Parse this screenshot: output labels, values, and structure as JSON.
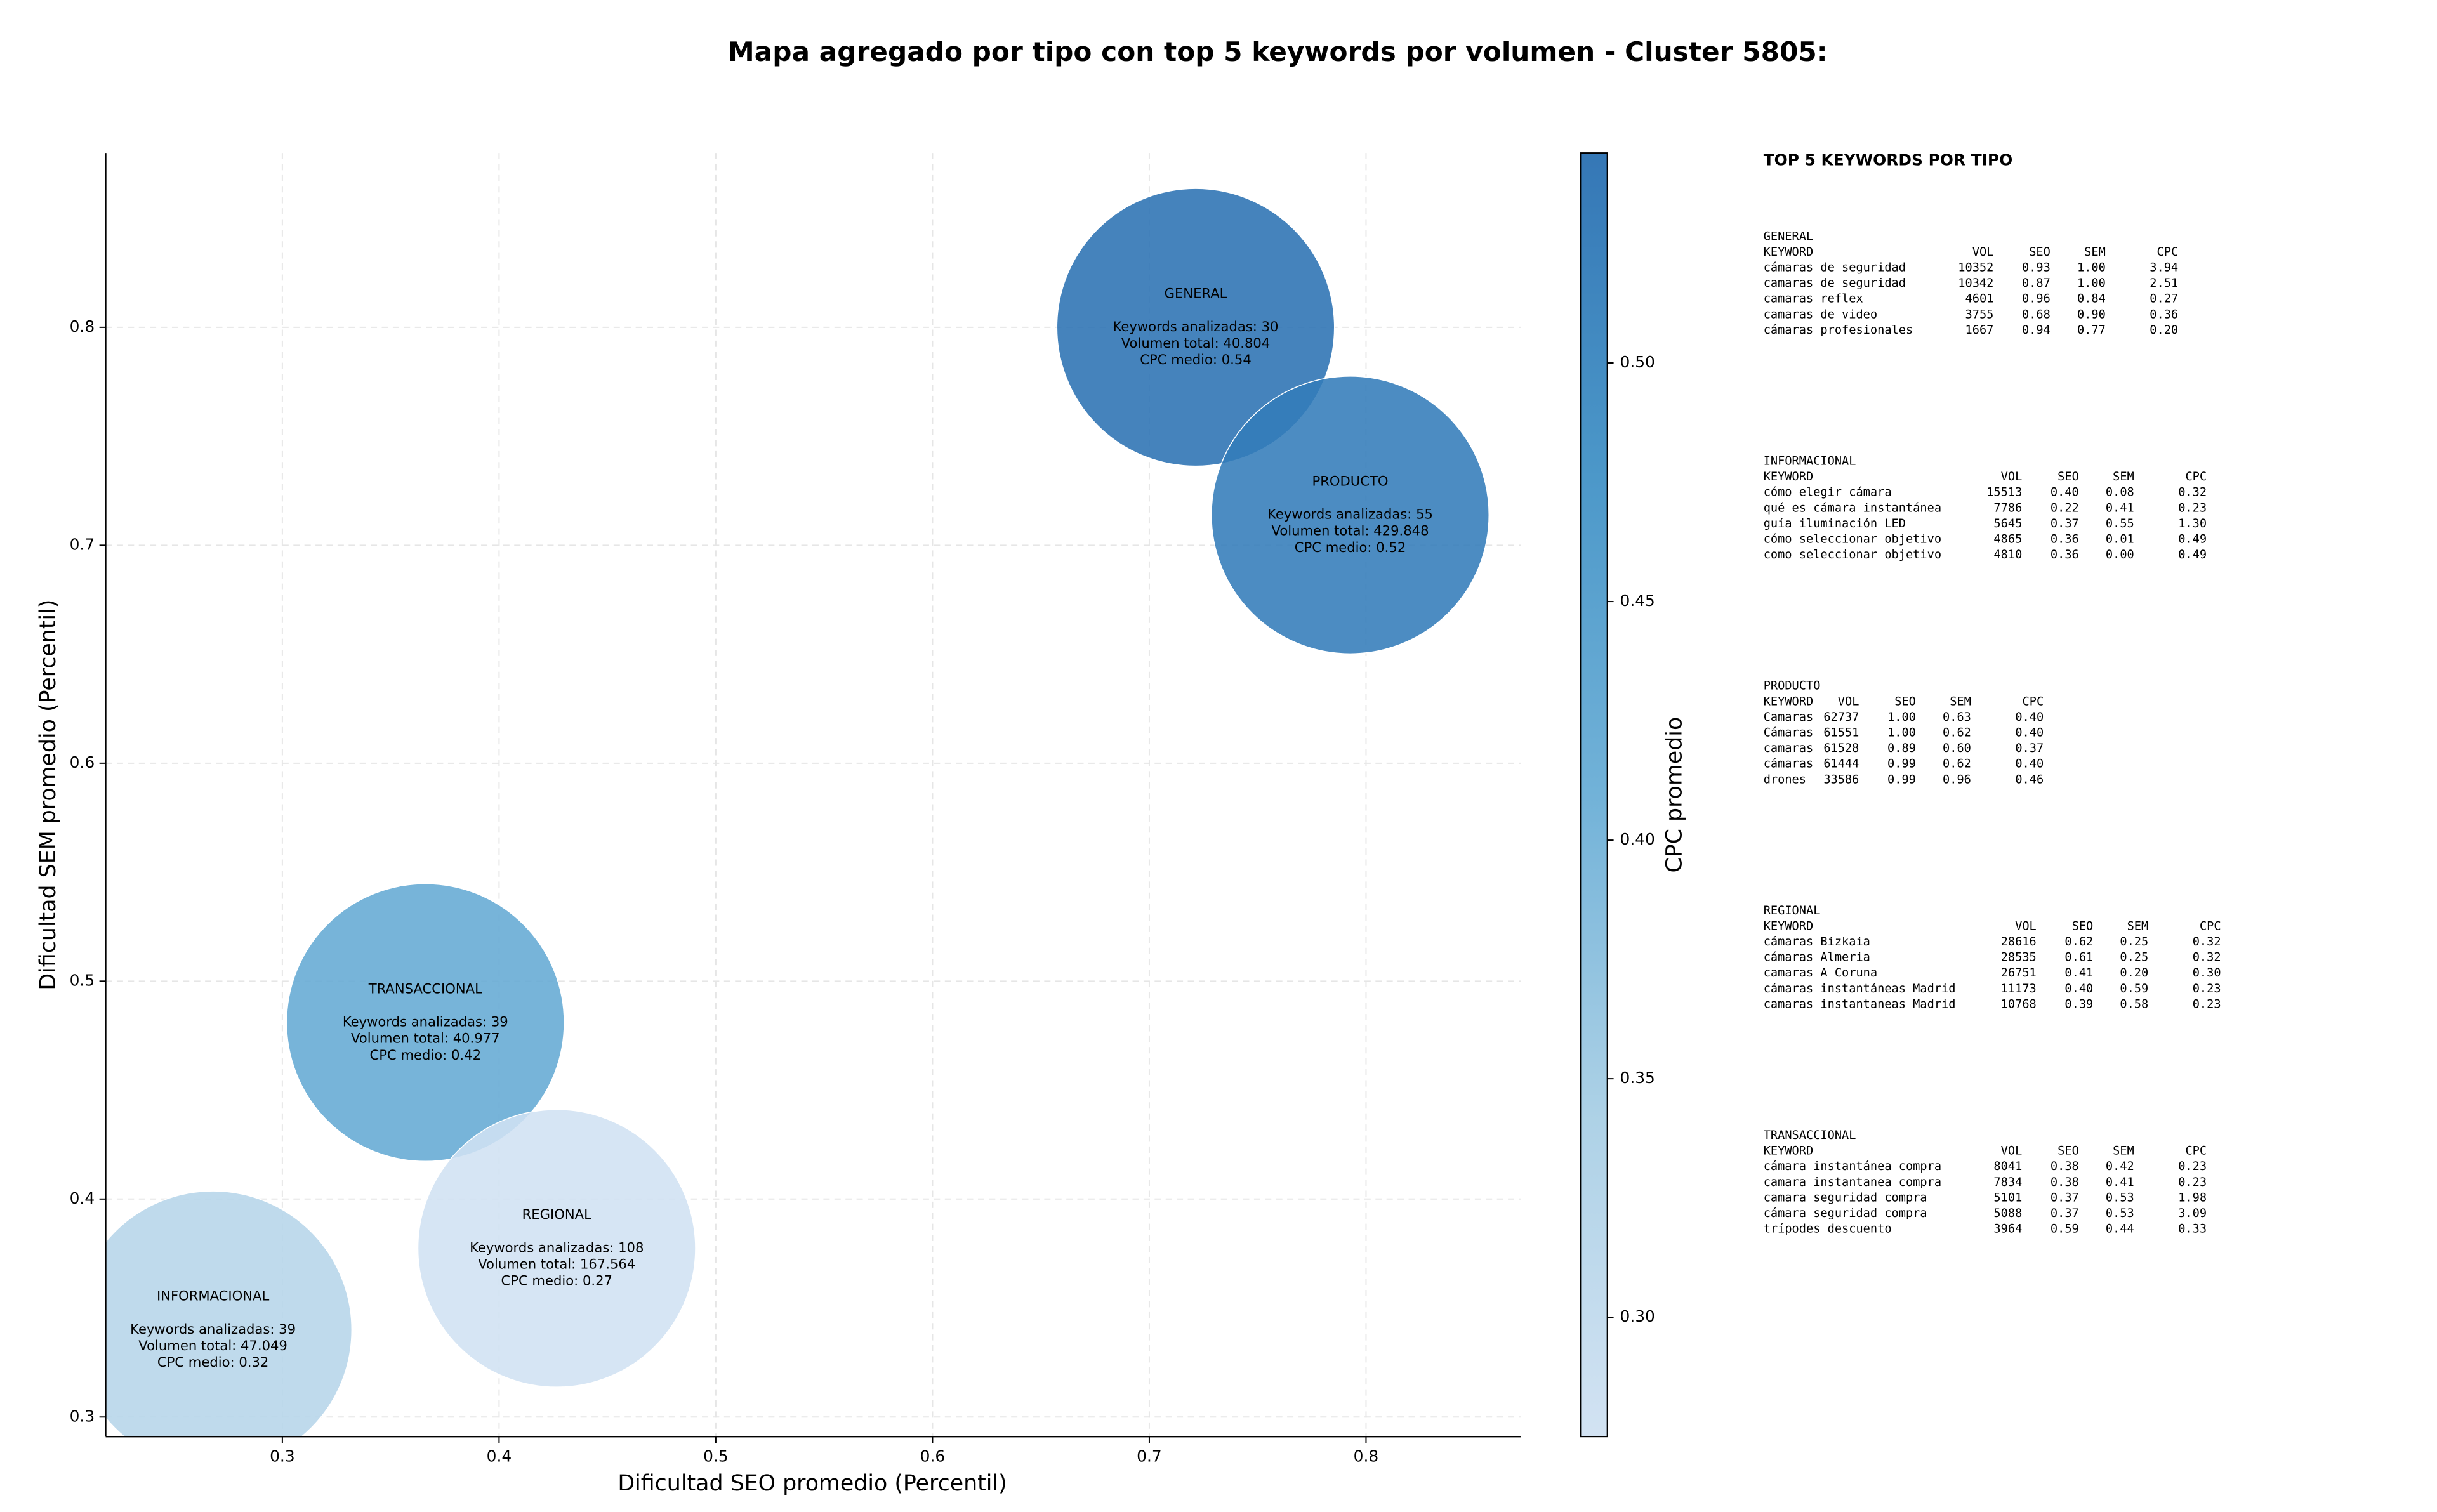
{
  "chart_data": {
    "type": "bubble",
    "title": "Mapa agregado por tipo con top 5 keywords por volumen - Cluster 5805:",
    "x_label": "Dificultad SEO promedio (Percentil)",
    "y_label": "Dificultad SEM promedio (Percentil)",
    "labels": [
      "GENERAL",
      "PRODUCTO",
      "TRANSACCIONAL",
      "REGIONAL",
      "INFORMACIONAL"
    ],
    "x": [
      0.7214,
      0.7927,
      0.366,
      0.4266,
      0.268
    ],
    "values": [
      0.8,
      0.7139,
      0.481,
      0.3774,
      0.34
    ],
    "cpc": [
      0.54,
      0.52,
      0.42,
      0.27,
      0.32
    ],
    "annotations": [
      [
        "Keywords analizadas: 30",
        "Volumen total: 40.804",
        "CPC medio: 0.54"
      ],
      [
        "Keywords analizadas: 55",
        "Volumen total: 429.848",
        "CPC medio: 0.52"
      ],
      [
        "Keywords analizadas: 39",
        "Volumen total: 40.977",
        "CPC medio: 0.42"
      ],
      [
        "Keywords analizadas: 108",
        "Volumen total: 167.564",
        "CPC medio: 0.27"
      ],
      [
        "Keywords analizadas: 39",
        "Volumen total: 47.049",
        "CPC medio: 0.32"
      ]
    ],
    "xlim": [
      0.2185,
      0.8713
    ],
    "ylim": [
      0.291,
      0.88
    ],
    "xticks": [
      0.3,
      0.4,
      0.5,
      0.6,
      0.7,
      0.8
    ],
    "yticks": [
      0.3,
      0.4,
      0.5,
      0.6,
      0.7,
      0.8
    ],
    "grid": true,
    "colorbar": {
      "label": "CPC promedio",
      "clim": [
        0.275,
        0.544
      ],
      "colormap": [
        "#d0e1f2",
        "#a9cfe5",
        "#6aaed6",
        "#4292c6",
        "#2a70b2"
      ],
      "ticks": [
        {
          "value": 0.3,
          "label": "0.30"
        },
        {
          "value": 0.35,
          "label": "0.35"
        },
        {
          "value": 0.4,
          "label": "0.40"
        },
        {
          "value": 0.45,
          "label": "0.45"
        },
        {
          "value": 0.5,
          "label": "0.50"
        }
      ]
    }
  },
  "keyword_panel": {
    "title": "TOP 5 KEYWORDS POR TIPO",
    "columns": [
      "KEYWORD",
      "VOL",
      "SEO",
      "SEM",
      "CPC"
    ],
    "sections": [
      {
        "name": "GENERAL",
        "rows": [
          [
            "cámaras de seguridad",
            "10352",
            "0.93",
            "1.00",
            "3.94"
          ],
          [
            "camaras de seguridad",
            "10342",
            "0.87",
            "1.00",
            "2.51"
          ],
          [
            "camaras reflex",
            "4601",
            "0.96",
            "0.84",
            "0.27"
          ],
          [
            "camaras de video",
            "3755",
            "0.68",
            "0.90",
            "0.36"
          ],
          [
            "cámaras profesionales",
            "1667",
            "0.94",
            "0.77",
            "0.20"
          ]
        ]
      },
      {
        "name": "INFORMACIONAL",
        "rows": [
          [
            "cómo elegir cámara",
            "15513",
            "0.40",
            "0.08",
            "0.32"
          ],
          [
            "qué es cámara instantánea",
            "7786",
            "0.22",
            "0.41",
            "0.23"
          ],
          [
            "guía iluminación LED",
            "5645",
            "0.37",
            "0.55",
            "1.30"
          ],
          [
            "cómo seleccionar objetivo",
            "4865",
            "0.36",
            "0.01",
            "0.49"
          ],
          [
            "como seleccionar objetivo",
            "4810",
            "0.36",
            "0.00",
            "0.49"
          ]
        ]
      },
      {
        "name": "PRODUCTO",
        "rows": [
          [
            "Camaras",
            "62737",
            "1.00",
            "0.63",
            "0.40"
          ],
          [
            "Cámaras",
            "61551",
            "1.00",
            "0.62",
            "0.40"
          ],
          [
            "camaras",
            "61528",
            "0.89",
            "0.60",
            "0.37"
          ],
          [
            "cámaras",
            "61444",
            "0.99",
            "0.62",
            "0.40"
          ],
          [
            "drones",
            "33586",
            "0.99",
            "0.96",
            "0.46"
          ]
        ]
      },
      {
        "name": "REGIONAL",
        "rows": [
          [
            "cámaras Bizkaia",
            "28616",
            "0.62",
            "0.25",
            "0.32"
          ],
          [
            "cámaras Almeria",
            "28535",
            "0.61",
            "0.25",
            "0.32"
          ],
          [
            "camaras A Coruna",
            "26751",
            "0.41",
            "0.20",
            "0.30"
          ],
          [
            "cámaras instantáneas Madrid",
            "11173",
            "0.40",
            "0.59",
            "0.23"
          ],
          [
            "camaras instantaneas Madrid",
            "10768",
            "0.39",
            "0.58",
            "0.23"
          ]
        ]
      },
      {
        "name": "TRANSACCIONAL",
        "rows": [
          [
            "cámara instantánea compra",
            "8041",
            "0.38",
            "0.42",
            "0.23"
          ],
          [
            "camara instantanea compra",
            "7834",
            "0.38",
            "0.41",
            "0.23"
          ],
          [
            "camara seguridad compra",
            "5101",
            "0.37",
            "0.53",
            "1.98"
          ],
          [
            "cámara seguridad compra",
            "5088",
            "0.37",
            "0.53",
            "3.09"
          ],
          [
            "trípodes descuento",
            "3964",
            "0.59",
            "0.44",
            "0.33"
          ]
        ]
      }
    ]
  }
}
